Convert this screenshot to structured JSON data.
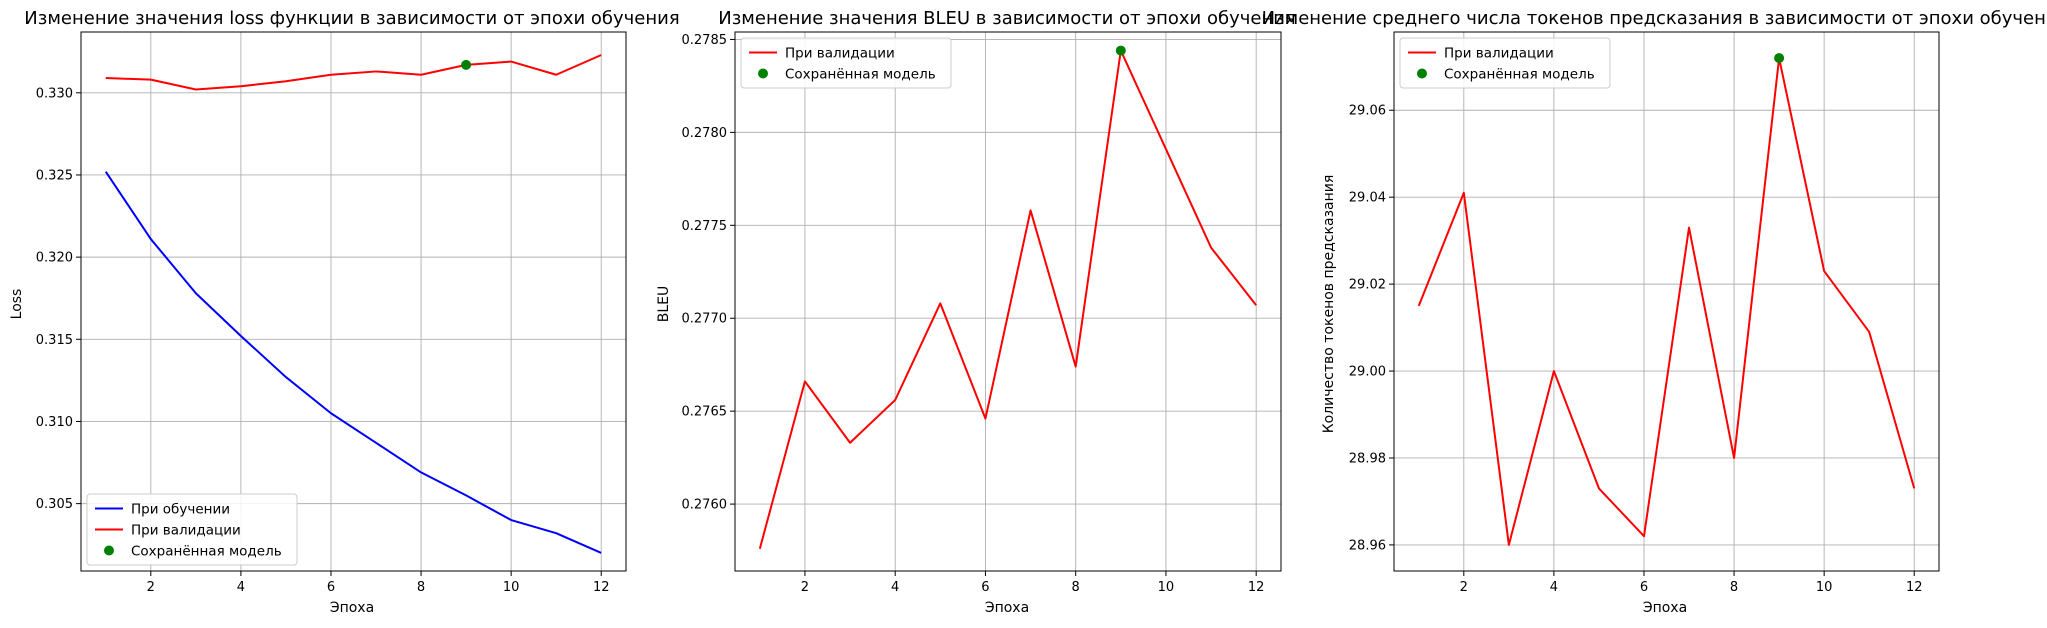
{
  "charts": [
    {
      "id": "loss",
      "type": "line",
      "title": "Изменение значения loss функции в зависимости от эпохи обучения",
      "xlabel": "Эпоха",
      "ylabel": "Loss",
      "xlim": [
        0.45,
        12.55
      ],
      "ylim": [
        0.3009,
        0.3337
      ],
      "xticks": [
        2,
        4,
        6,
        8,
        10,
        12
      ],
      "yticks": [
        0.305,
        0.31,
        0.315,
        0.32,
        0.325,
        0.33
      ],
      "ytick_labels": [
        "0.305",
        "0.310",
        "0.315",
        "0.320",
        "0.325",
        "0.330"
      ],
      "grid": true,
      "legend_position": "lower-left",
      "legend": [
        "При обучении",
        "При валидации",
        "Сохранённая модель"
      ],
      "series": [
        {
          "name": "При обучении",
          "color": "#0000ff",
          "x": [
            1,
            2,
            3,
            4,
            5,
            6,
            7,
            8,
            9,
            10,
            11,
            12
          ],
          "values": [
            0.3252,
            0.3211,
            0.3178,
            0.3152,
            0.3127,
            0.3105,
            0.3087,
            0.3069,
            0.3055,
            0.304,
            0.3032,
            0.302
          ]
        },
        {
          "name": "При валидации",
          "color": "#ff0000",
          "x": [
            1,
            2,
            3,
            4,
            5,
            6,
            7,
            8,
            9,
            10,
            11,
            12
          ],
          "values": [
            0.3309,
            0.3308,
            0.3302,
            0.3304,
            0.3307,
            0.3311,
            0.3313,
            0.3311,
            0.3317,
            0.3319,
            0.3311,
            0.3323
          ]
        }
      ],
      "marker": {
        "name": "Сохранённая модель",
        "color": "#008000",
        "x": 9,
        "y": 0.3317
      }
    },
    {
      "id": "bleu",
      "type": "line",
      "title": "Изменение значения BLEU в зависимости от эпохи обучения",
      "xlabel": "Эпоха",
      "ylabel": "BLEU",
      "xlim": [
        0.45,
        12.55
      ],
      "ylim": [
        0.27564,
        0.27854
      ],
      "xticks": [
        2,
        4,
        6,
        8,
        10,
        12
      ],
      "yticks": [
        0.276,
        0.2765,
        0.277,
        0.2775,
        0.278,
        0.2785
      ],
      "ytick_labels": [
        "0.2760",
        "0.2765",
        "0.2770",
        "0.2775",
        "0.2780",
        "0.2785"
      ],
      "grid": true,
      "legend_position": "upper-left",
      "legend": [
        "При валидации",
        "Сохранённая модель"
      ],
      "series": [
        {
          "name": "При валидации",
          "color": "#ff0000",
          "x": [
            1,
            2,
            3,
            4,
            5,
            6,
            7,
            8,
            9,
            10,
            11,
            12
          ],
          "values": [
            0.27576,
            0.27666,
            0.27633,
            0.27656,
            0.27708,
            0.27646,
            0.27758,
            0.27674,
            0.27844,
            0.27791,
            0.27738,
            0.27707
          ]
        }
      ],
      "marker": {
        "name": "Сохранённая модель",
        "color": "#008000",
        "x": 9,
        "y": 0.27844
      }
    },
    {
      "id": "tokens",
      "type": "line",
      "title": "Изменение среднего числа токенов предсказания в зависимости от эпохи обучения",
      "xlabel": "Эпоха",
      "ylabel": "Количество токенов предсказания",
      "xlim": [
        0.45,
        12.55
      ],
      "ylim": [
        28.954,
        29.078
      ],
      "xticks": [
        2,
        4,
        6,
        8,
        10,
        12
      ],
      "yticks": [
        28.96,
        28.98,
        29.0,
        29.02,
        29.04,
        29.06
      ],
      "ytick_labels": [
        "28.96",
        "28.98",
        "29.00",
        "29.02",
        "29.04",
        "29.06"
      ],
      "grid": true,
      "legend_position": "upper-left",
      "legend": [
        "При валидации",
        "Сохранённая модель"
      ],
      "series": [
        {
          "name": "При валидации",
          "color": "#ff0000",
          "x": [
            1,
            2,
            3,
            4,
            5,
            6,
            7,
            8,
            9,
            10,
            11,
            12
          ],
          "values": [
            29.015,
            29.041,
            28.96,
            29.0,
            28.973,
            28.962,
            29.033,
            28.98,
            29.072,
            29.023,
            29.009,
            28.973
          ]
        }
      ],
      "marker": {
        "name": "Сохранённая модель",
        "color": "#008000",
        "x": 9,
        "y": 29.072
      }
    }
  ],
  "chart_data": [
    {
      "type": "line",
      "title": "Изменение значения loss функции в зависимости от эпохи обучения",
      "xlabel": "Эпоха",
      "ylabel": "Loss",
      "x": [
        1,
        2,
        3,
        4,
        5,
        6,
        7,
        8,
        9,
        10,
        11,
        12
      ],
      "series": [
        {
          "name": "При обучении",
          "values": [
            0.3252,
            0.3211,
            0.3178,
            0.3152,
            0.3127,
            0.3105,
            0.3087,
            0.3069,
            0.3055,
            0.304,
            0.3032,
            0.302
          ]
        },
        {
          "name": "При валидации",
          "values": [
            0.3309,
            0.3308,
            0.3302,
            0.3304,
            0.3307,
            0.3311,
            0.3313,
            0.3311,
            0.3317,
            0.3319,
            0.3311,
            0.3323
          ]
        },
        {
          "name": "Сохранённая модель",
          "x": [
            9
          ],
          "values": [
            0.3317
          ]
        }
      ],
      "ylim": [
        0.3009,
        0.3337
      ],
      "grid": true,
      "legend": "lower-left"
    },
    {
      "type": "line",
      "title": "Изменение значения BLEU в зависимости от эпохи обучения",
      "xlabel": "Эпоха",
      "ylabel": "BLEU",
      "x": [
        1,
        2,
        3,
        4,
        5,
        6,
        7,
        8,
        9,
        10,
        11,
        12
      ],
      "series": [
        {
          "name": "При валидации",
          "values": [
            0.27576,
            0.27666,
            0.27633,
            0.27656,
            0.27708,
            0.27646,
            0.27758,
            0.27674,
            0.27844,
            0.27791,
            0.27738,
            0.27707
          ]
        },
        {
          "name": "Сохранённая модель",
          "x": [
            9
          ],
          "values": [
            0.27844
          ]
        }
      ],
      "ylim": [
        0.27564,
        0.27854
      ],
      "grid": true,
      "legend": "upper-left"
    },
    {
      "type": "line",
      "title": "Изменение среднего числа токенов предсказания в зависимости от эпохи обучения",
      "xlabel": "Эпоха",
      "ylabel": "Количество токенов предсказания",
      "x": [
        1,
        2,
        3,
        4,
        5,
        6,
        7,
        8,
        9,
        10,
        11,
        12
      ],
      "series": [
        {
          "name": "При валидации",
          "values": [
            29.015,
            29.041,
            28.96,
            29.0,
            28.973,
            28.962,
            29.033,
            28.98,
            29.072,
            29.023,
            29.009,
            28.973
          ]
        },
        {
          "name": "Сохранённая модель",
          "x": [
            9
          ],
          "values": [
            29.072
          ]
        }
      ],
      "ylim": [
        28.954,
        29.078
      ],
      "grid": true,
      "legend": "upper-left"
    }
  ]
}
